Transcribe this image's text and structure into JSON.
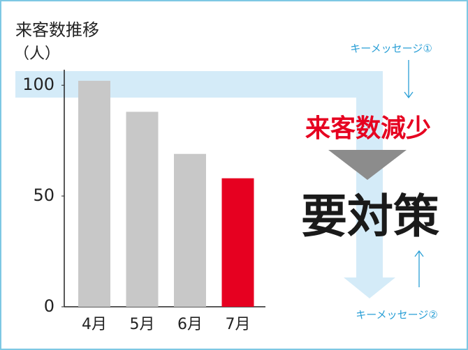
{
  "chart_data": {
    "type": "bar",
    "title": "来客数推移",
    "y_label": "（人）",
    "categories": [
      "4月",
      "5月",
      "6月",
      "7月"
    ],
    "values": [
      102,
      88,
      69,
      58
    ],
    "colors": [
      "#c8c8c8",
      "#c8c8c8",
      "#c8c8c8",
      "#e60020"
    ],
    "ylim": [
      0,
      107
    ],
    "yticks": [
      0,
      50,
      100
    ],
    "annotations": {
      "key_message_1": "キーメッセージ①",
      "headline": "来客数減少",
      "action": "要対策",
      "key_message_2": "キーメッセージ②"
    }
  }
}
